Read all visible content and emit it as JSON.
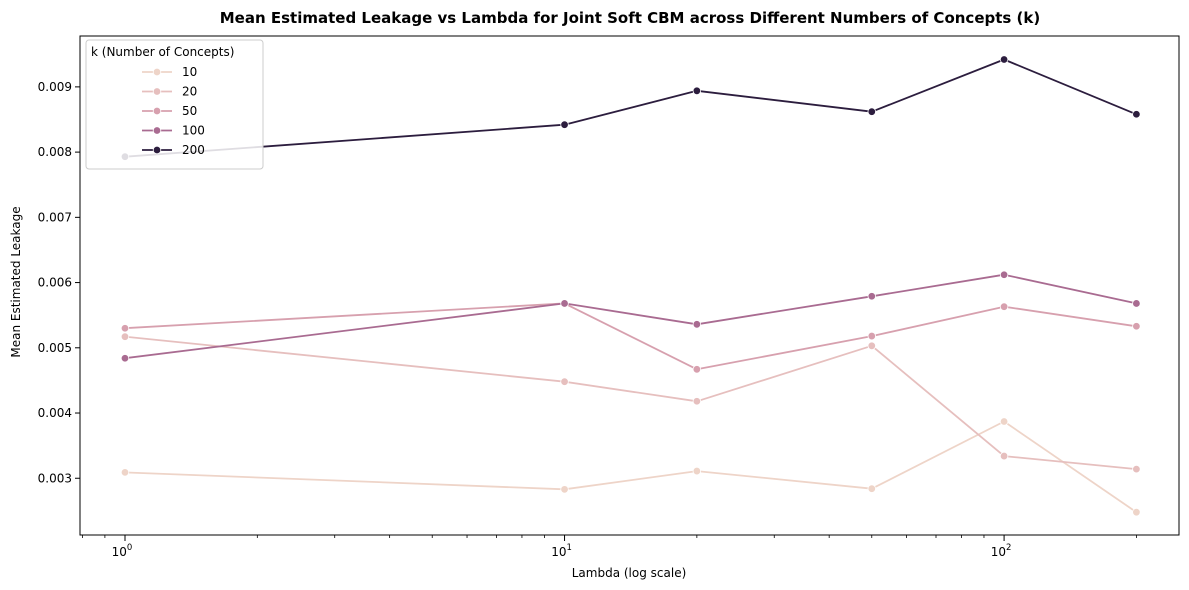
{
  "chart_data": {
    "type": "line",
    "title": "Mean Estimated Leakage vs Lambda for Joint Soft CBM across Different Numbers of Concepts (k)",
    "xlabel": "Lambda (log scale)",
    "ylabel": "Mean Estimated Leakage",
    "x_scale": "log",
    "xlim": [
      0.79,
      250
    ],
    "ylim": [
      0.00213,
      0.00978
    ],
    "x": [
      1,
      10,
      20,
      50,
      100,
      200
    ],
    "x_ticks": [
      {
        "value": 1,
        "base": "10",
        "exp": "0"
      },
      {
        "value": 10,
        "base": "10",
        "exp": "1"
      },
      {
        "value": 100,
        "base": "10",
        "exp": "2"
      }
    ],
    "y_ticks": [
      {
        "value": 0.003,
        "label": "0.003"
      },
      {
        "value": 0.004,
        "label": "0.004"
      },
      {
        "value": 0.005,
        "label": "0.005"
      },
      {
        "value": 0.006,
        "label": "0.006"
      },
      {
        "value": 0.007,
        "label": "0.007"
      },
      {
        "value": 0.008,
        "label": "0.008"
      },
      {
        "value": 0.009,
        "label": "0.009"
      }
    ],
    "grid": false,
    "legend": {
      "title": "k (Number of Concepts)",
      "placement": "top-left"
    },
    "series": [
      {
        "name": "10",
        "color": "#eed4c8",
        "values": [
          0.00309,
          0.00283,
          0.00311,
          0.00284,
          0.00387,
          0.00248
        ]
      },
      {
        "name": "20",
        "color": "#e6bfbe",
        "values": [
          0.00517,
          0.00448,
          0.00418,
          0.00503,
          0.00334,
          0.00314
        ]
      },
      {
        "name": "50",
        "color": "#d7a0ae",
        "values": [
          0.0053,
          0.00568,
          0.00467,
          0.00518,
          0.00563,
          0.00533
        ]
      },
      {
        "name": "100",
        "color": "#a96b91",
        "values": [
          0.00484,
          0.00568,
          0.00536,
          0.00579,
          0.00612,
          0.00568
        ]
      },
      {
        "name": "200",
        "color": "#2c1d3e",
        "values": [
          0.00793,
          0.00842,
          0.00894,
          0.00862,
          0.00942,
          0.00858
        ]
      }
    ]
  }
}
